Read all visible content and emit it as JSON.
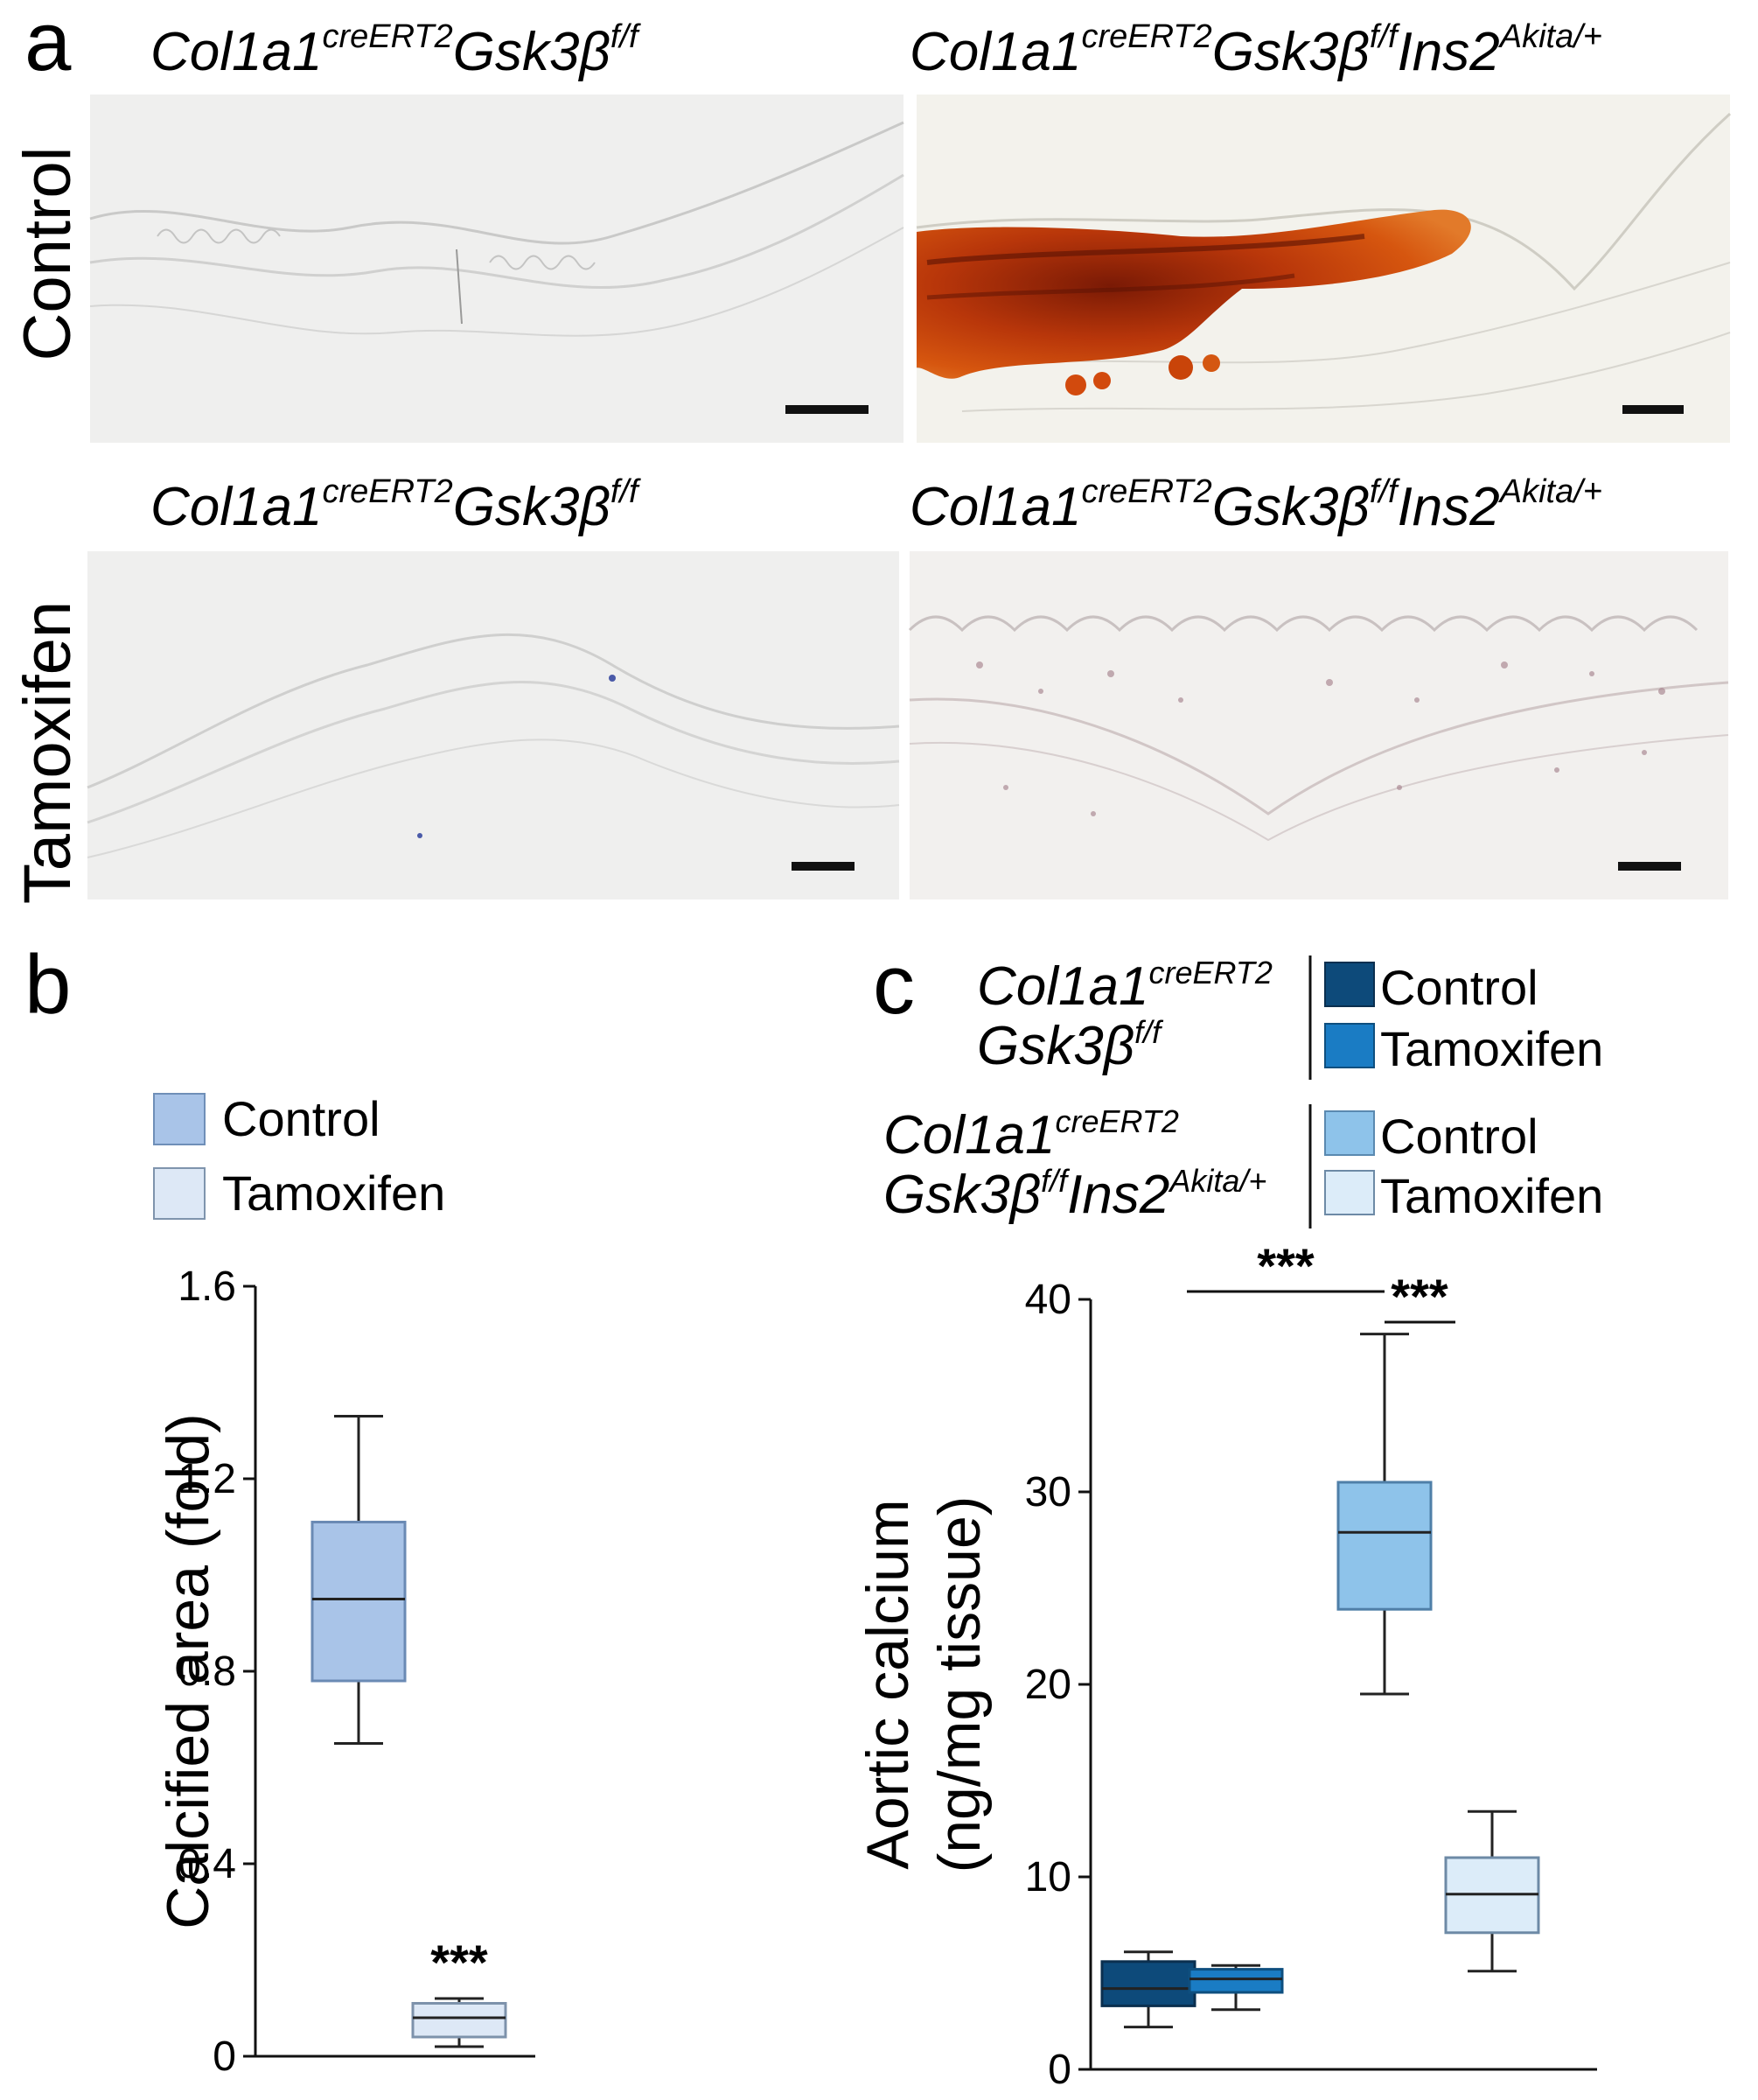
{
  "panel_a": {
    "letter": "a",
    "rows": [
      {
        "label": "Control"
      },
      {
        "label": "Tamoxifen"
      }
    ],
    "images": [
      {
        "genotype": {
          "base": "Col1a1",
          "sup1": "creERT2",
          "gene": "Gsk3β",
          "sup2": "f/f",
          "ins": "",
          "sup3": ""
        },
        "stain": "none"
      },
      {
        "genotype": {
          "base": "Col1a1",
          "sup1": "creERT2",
          "gene": "Gsk3β",
          "sup2": "f/f",
          "ins": "Ins2",
          "sup3": "Akita/+"
        },
        "stain": "heavy-red"
      },
      {
        "genotype": {
          "base": "Col1a1",
          "sup1": "creERT2",
          "gene": "Gsk3β",
          "sup2": "f/f",
          "ins": "",
          "sup3": ""
        },
        "stain": "none"
      },
      {
        "genotype": {
          "base": "Col1a1",
          "sup1": "creERT2",
          "gene": "Gsk3β",
          "sup2": "f/f",
          "ins": "Ins2",
          "sup3": "Akita/+"
        },
        "stain": "faint"
      }
    ]
  },
  "panel_b": {
    "letter": "b",
    "legend": [
      {
        "label": "Control",
        "color": "#a9c4e8"
      },
      {
        "label": "Tamoxifen",
        "color": "#dde8f6"
      }
    ],
    "significance": "***"
  },
  "panel_c": {
    "letter": "c",
    "legend_groups": [
      {
        "genotype_line1": {
          "base": "Col1a1",
          "sup": "creERT2"
        },
        "genotype_line2": {
          "gene": "Gsk3β",
          "sup": "f/f",
          "ins": "",
          "ins_sup": ""
        },
        "items": [
          {
            "label": "Control",
            "color": "#0d4a7a"
          },
          {
            "label": "Tamoxifen",
            "color": "#1a7cc4"
          }
        ]
      },
      {
        "genotype_line1": {
          "base": "Col1a1",
          "sup": "creERT2"
        },
        "genotype_line2": {
          "gene": "Gsk3β",
          "sup": "f/f",
          "ins": "Ins2",
          "ins_sup": "Akita/+"
        },
        "items": [
          {
            "label": "Control",
            "color": "#8ec3ea"
          },
          {
            "label": "Tamoxifen",
            "color": "#dcecf9"
          }
        ]
      }
    ],
    "significance": [
      "***",
      "***"
    ]
  },
  "chart_data": [
    {
      "type": "box",
      "ylabel": "Calcified area (fold)",
      "ylim": [
        0,
        1.6
      ],
      "yticks": [
        0,
        0.4,
        0.8,
        1.2,
        1.6
      ],
      "series": [
        {
          "name": "Control",
          "min": 0.65,
          "q1": 0.78,
          "median": 0.95,
          "q3": 1.11,
          "max": 1.33
        },
        {
          "name": "Tamoxifen",
          "min": 0.02,
          "q1": 0.04,
          "median": 0.08,
          "q3": 0.11,
          "max": 0.12
        }
      ],
      "annotations": [
        {
          "text": "***",
          "series": "Tamoxifen"
        }
      ]
    },
    {
      "type": "box",
      "ylabel": "Aortic calcium (ng/mg tissue)",
      "ylabel_lines": [
        "Aortic calcium",
        "(ng/mg tissue)"
      ],
      "ylim": [
        0,
        40
      ],
      "yticks": [
        0,
        10,
        20,
        30,
        40
      ],
      "series": [
        {
          "name": "Control",
          "group": "Col1a1creERT2 Gsk3βf/f",
          "min": 2.2,
          "q1": 3.3,
          "median": 4.2,
          "q3": 5.6,
          "max": 6.1
        },
        {
          "name": "Tamoxifen",
          "group": "Col1a1creERT2 Gsk3βf/f",
          "min": 3.1,
          "q1": 4.0,
          "median": 4.7,
          "q3": 5.2,
          "max": 5.4
        },
        {
          "name": "Control",
          "group": "Col1a1creERT2 Gsk3βf/f Ins2Akita/+",
          "min": 19.5,
          "q1": 23.9,
          "median": 27.9,
          "q3": 30.5,
          "max": 38.2
        },
        {
          "name": "Tamoxifen",
          "group": "Col1a1creERT2 Gsk3βf/f Ins2Akita/+",
          "min": 5.1,
          "q1": 7.1,
          "median": 9.1,
          "q3": 11.0,
          "max": 13.4
        }
      ],
      "annotations": [
        {
          "text": "***",
          "from": 0,
          "to": 2
        },
        {
          "text": "***",
          "from": 2,
          "to": 3
        }
      ]
    }
  ]
}
